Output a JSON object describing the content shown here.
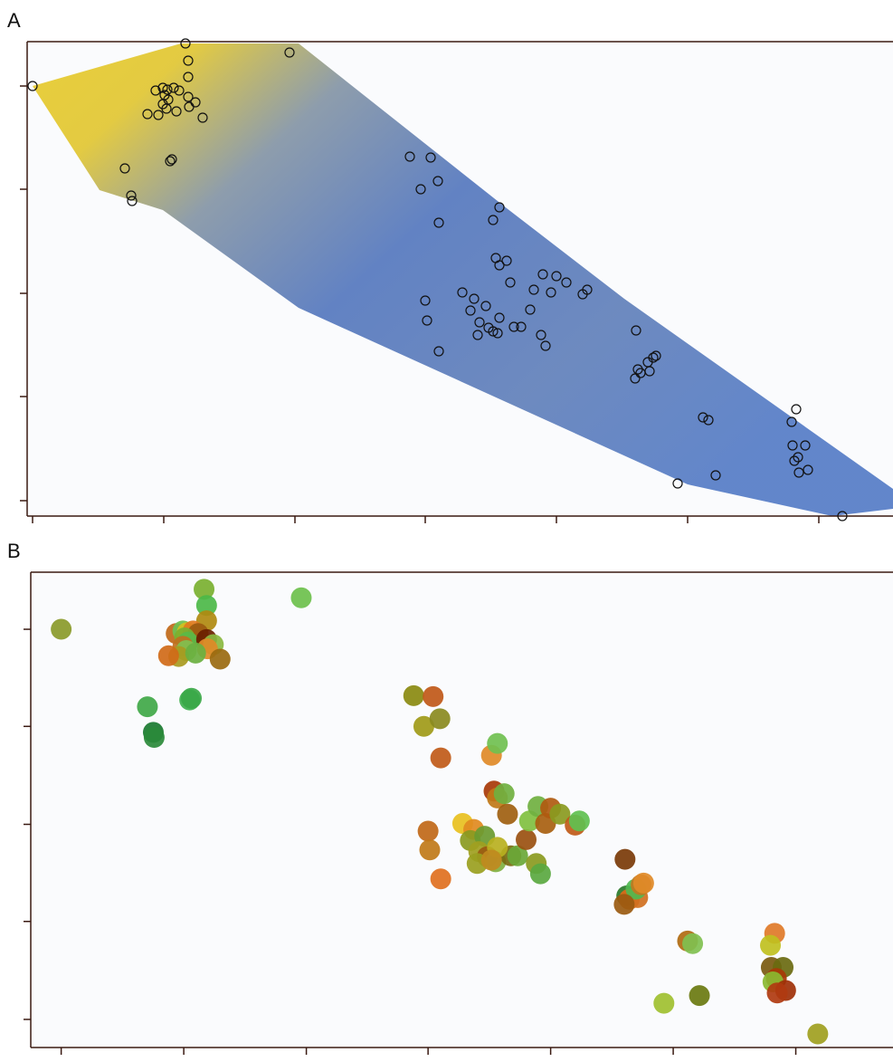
{
  "chart_data": [
    {
      "type": "scatter",
      "title": "A",
      "marker": "hollow",
      "color": "#111111",
      "surface": true,
      "x": [
        0,
        169,
        172,
        172,
        284,
        136,
        144,
        149,
        156,
        162,
        146,
        150,
        144,
        148,
        139,
        127,
        172,
        180,
        173,
        159,
        188,
        152,
        154,
        102,
        109,
        110,
        417,
        440,
        429,
        448,
        449,
        509,
        516,
        512,
        516,
        524,
        528,
        475,
        488,
        484,
        501,
        434,
        436,
        494,
        504,
        514,
        492,
        532,
        540,
        550,
        554,
        564,
        573,
        579,
        590,
        608,
        613,
        562,
        567,
        449,
        516,
        509,
        667,
        669,
        672,
        682,
        680,
        686,
        689,
        666,
        741,
        747,
        844,
        839,
        840,
        854,
        846,
        842,
        857,
        847,
        755,
        713,
        895
      ],
      "y": [
        458,
        505,
        486,
        468,
        495,
        453,
        456,
        454,
        456,
        453,
        448,
        443,
        438,
        433,
        426,
        427,
        446,
        440,
        435,
        430,
        423,
        375,
        377,
        367,
        337,
        331,
        380,
        379,
        344,
        353,
        307,
        310,
        324,
        268,
        260,
        265,
        241,
        230,
        223,
        210,
        215,
        221,
        199,
        197,
        191,
        185,
        183,
        192,
        192,
        211,
        233,
        250,
        230,
        248,
        241,
        228,
        233,
        183,
        171,
        165,
        202,
        187,
        188,
        145,
        141,
        143,
        153,
        158,
        160,
        135,
        92,
        89,
        101,
        87,
        61,
        61,
        48,
        44,
        34,
        31,
        28,
        19,
        -17
      ],
      "xlim": [
        -6,
        951
      ],
      "ylim": [
        -17,
        507
      ],
      "xticks": [
        0,
        145,
        290,
        434,
        579,
        724,
        869
      ],
      "yticks": [
        0,
        115,
        229,
        344,
        458
      ]
    },
    {
      "type": "scatter",
      "title": "B",
      "marker": "filled",
      "x": [
        0,
        169,
        172,
        172,
        284,
        136,
        144,
        149,
        156,
        162,
        146,
        150,
        144,
        148,
        139,
        127,
        172,
        180,
        173,
        159,
        188,
        152,
        154,
        102,
        109,
        110,
        417,
        440,
        429,
        448,
        449,
        509,
        516,
        512,
        516,
        524,
        528,
        475,
        488,
        484,
        501,
        434,
        436,
        494,
        504,
        514,
        492,
        532,
        540,
        550,
        554,
        564,
        573,
        579,
        590,
        608,
        613,
        562,
        567,
        449,
        516,
        509,
        667,
        669,
        672,
        682,
        680,
        686,
        689,
        666,
        741,
        747,
        844,
        839,
        840,
        854,
        846,
        842,
        857,
        847,
        755,
        713,
        895
      ],
      "y": [
        458,
        505,
        486,
        468,
        495,
        453,
        456,
        454,
        456,
        453,
        448,
        443,
        438,
        433,
        426,
        427,
        446,
        440,
        435,
        430,
        423,
        375,
        377,
        367,
        337,
        331,
        380,
        379,
        344,
        353,
        307,
        310,
        324,
        268,
        260,
        265,
        241,
        230,
        223,
        210,
        215,
        221,
        199,
        197,
        191,
        185,
        183,
        192,
        192,
        211,
        233,
        250,
        230,
        248,
        241,
        228,
        233,
        183,
        171,
        165,
        202,
        187,
        188,
        145,
        141,
        143,
        153,
        158,
        160,
        135,
        92,
        89,
        101,
        87,
        61,
        61,
        48,
        44,
        34,
        31,
        28,
        19,
        -17
      ],
      "colors": [
        "#8a9a2a",
        "#7ab030",
        "#4cb848",
        "#b08a10",
        "#6cc04c",
        "#c06818",
        "#6cc050",
        "#d4c020",
        "#e07a20",
        "#9a5a10",
        "#7ab030",
        "#5ab848",
        "#c07020",
        "#80c050",
        "#a89a20",
        "#d06a18",
        "#6a2000",
        "#8ab840",
        "#e08a28",
        "#6ab040",
        "#9a6a10",
        "#40b050",
        "#3aa848",
        "#40a848",
        "#1a7a30",
        "#2a8a3a",
        "#8a8a10",
        "#c05818",
        "#a09a18",
        "#8a8a20",
        "#c05a18",
        "#e08a28",
        "#70c050",
        "#a83a08",
        "#c07818",
        "#70b040",
        "#a06010",
        "#e8c020",
        "#e08a20",
        "#8a9a20",
        "#6a9a30",
        "#c06818",
        "#c07a18",
        "#a0a020",
        "#9a5a10",
        "#80b040",
        "#9aa020",
        "#7a6a10",
        "#6aa838",
        "#9a5010",
        "#80c040",
        "#70b040",
        "#a86010",
        "#b05a10",
        "#8a9a20",
        "#c05a18",
        "#60c050",
        "#8a9a20",
        "#5aa840",
        "#e07020",
        "#b8b020",
        "#c08a20",
        "#7a3a08",
        "#2a7a2a",
        "#e06a18",
        "#d07020",
        "#50b850",
        "#c07820",
        "#e08a28",
        "#9a5a10",
        "#b06a10",
        "#80c050",
        "#e07a28",
        "#c0c020",
        "#7a5a10",
        "#6a6a10",
        "#a83a08",
        "#8ab830",
        "#a03008",
        "#b03a10",
        "#6a7a10",
        "#a0c030",
        "#a0a020"
      ],
      "xlim": [
        -36,
        984
      ],
      "ylim": [
        -33,
        525
      ],
      "xticks": [
        0,
        145,
        290,
        434,
        579,
        724,
        869
      ],
      "yticks": [
        0,
        115,
        229,
        344,
        458
      ]
    }
  ]
}
